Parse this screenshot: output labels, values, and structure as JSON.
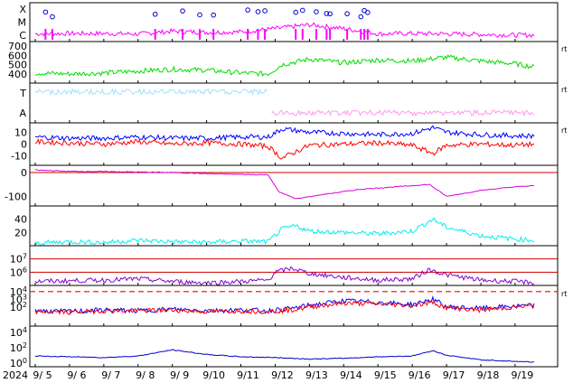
{
  "chart_data": {
    "type": "line",
    "title": "",
    "year_label": "2024",
    "days": [
      "9/ 5",
      "9/ 6",
      "9/ 7",
      "9/ 8",
      "9/ 9",
      "9/10",
      "9/11",
      "9/12",
      "9/13",
      "9/14",
      "9/15",
      "9/16",
      "9/17",
      "9/18",
      "9/19"
    ],
    "panels": [
      {
        "id": "xray",
        "ylim": [
          0,
          3
        ],
        "y_labels": [
          {
            "text": "X",
            "y": 2.5
          },
          {
            "text": "M",
            "y": 1.5
          },
          {
            "text": "C",
            "y": 0.5
          }
        ],
        "series": [
          {
            "color": "#ff00ff",
            "points": [
              [
                0,
                0.6
              ],
              [
                1,
                0.62
              ],
              [
                2,
                0.62
              ],
              [
                3,
                0.58
              ],
              [
                4,
                0.8
              ],
              [
                5,
                0.7
              ],
              [
                6,
                0.75
              ],
              [
                7,
                1.0
              ],
              [
                8,
                1.3
              ],
              [
                9,
                1.0
              ],
              [
                10,
                0.6
              ],
              [
                11,
                0.62
              ],
              [
                12,
                0.6
              ],
              [
                13,
                0.55
              ],
              [
                14,
                0.5
              ],
              [
                14.6,
                0.5
              ]
            ]
          }
        ],
        "flare_days": [
          0.3,
          0.5,
          3.5,
          4.3,
          4.8,
          5.2,
          6.2,
          6.5,
          6.7,
          7.6,
          7.8,
          8.2,
          8.5,
          8.6,
          9.1,
          9.5,
          9.6,
          9.7
        ]
      },
      {
        "id": "solar_wind_speed",
        "ylim": [
          300,
          750
        ],
        "ticks": [
          400,
          500,
          600,
          700
        ],
        "series": [
          {
            "color": "#00dd00",
            "points": [
              [
                0,
                410
              ],
              [
                1,
                400
              ],
              [
                2,
                410
              ],
              [
                3,
                430
              ],
              [
                4,
                450
              ],
              [
                5,
                440
              ],
              [
                6,
                410
              ],
              [
                6.8,
                400
              ],
              [
                7.2,
                500
              ],
              [
                8,
                560
              ],
              [
                9,
                520
              ],
              [
                10,
                550
              ],
              [
                11,
                540
              ],
              [
                12,
                580
              ],
              [
                13,
                540
              ],
              [
                14,
                510
              ],
              [
                14.6,
                470
              ]
            ]
          }
        ]
      },
      {
        "id": "imf_sector",
        "y_labels": [
          {
            "text": "T",
            "y": 0.75
          },
          {
            "text": "A",
            "y": 0.25
          }
        ],
        "series": [
          {
            "color": "#a0e0ff",
            "name": "",
            "points": [
              [
                0,
                0.78
              ],
              [
                6.8,
                0.78
              ]
            ]
          },
          {
            "color": "#ff99ee",
            "name": "",
            "points": [
              [
                6.9,
                0.25
              ],
              [
                14.6,
                0.25
              ]
            ]
          }
        ]
      },
      {
        "id": "imf_bz",
        "ylim": [
          -18,
          18
        ],
        "ticks": [
          10,
          0,
          -10
        ],
        "series": [
          {
            "color": "#0000ff",
            "points": [
              [
                0,
                6
              ],
              [
                1,
                5
              ],
              [
                2,
                5
              ],
              [
                3,
                6
              ],
              [
                4,
                5
              ],
              [
                5,
                5
              ],
              [
                6,
                6
              ],
              [
                6.8,
                6
              ],
              [
                7.2,
                13
              ],
              [
                8,
                10
              ],
              [
                9,
                9
              ],
              [
                10,
                8
              ],
              [
                11,
                9
              ],
              [
                11.6,
                14
              ],
              [
                12,
                10
              ],
              [
                13,
                8
              ],
              [
                14,
                7
              ],
              [
                14.6,
                7
              ]
            ]
          },
          {
            "color": "#ff0000",
            "points": [
              [
                0,
                2
              ],
              [
                1,
                1
              ],
              [
                2,
                0
              ],
              [
                3,
                2
              ],
              [
                4,
                0
              ],
              [
                5,
                1
              ],
              [
                6,
                0
              ],
              [
                6.8,
                -2
              ],
              [
                7.2,
                -12
              ],
              [
                8,
                -1
              ],
              [
                9,
                0
              ],
              [
                10,
                1
              ],
              [
                11,
                -1
              ],
              [
                11.6,
                -8
              ],
              [
                12,
                -1
              ],
              [
                13,
                0
              ],
              [
                14,
                -1
              ],
              [
                14.6,
                0
              ]
            ]
          }
        ]
      },
      {
        "id": "dst",
        "ylim": [
          -140,
          30
        ],
        "ticks": [
          0,
          -100
        ],
        "series": [
          {
            "color": "#dd00dd",
            "points": [
              [
                0,
                10
              ],
              [
                1,
                5
              ],
              [
                2,
                4
              ],
              [
                3,
                2
              ],
              [
                4,
                0
              ],
              [
                5,
                -5
              ],
              [
                6,
                -8
              ],
              [
                6.8,
                -10
              ],
              [
                7.1,
                -80
              ],
              [
                7.6,
                -110
              ],
              [
                8.5,
                -90
              ],
              [
                9.5,
                -70
              ],
              [
                10.5,
                -60
              ],
              [
                11.5,
                -50
              ],
              [
                12,
                -100
              ],
              [
                13,
                -75
              ],
              [
                14,
                -60
              ],
              [
                14.6,
                -55
              ]
            ]
          }
        ],
        "ref_lines": [
          0
        ]
      },
      {
        "id": "kp_like",
        "ylim": [
          0,
          60
        ],
        "ticks": [
          40,
          20
        ],
        "series": [
          {
            "color": "#00eeee",
            "points": [
              [
                0,
                4
              ],
              [
                1,
                6
              ],
              [
                2,
                5
              ],
              [
                3,
                8
              ],
              [
                4,
                6
              ],
              [
                5,
                5
              ],
              [
                6,
                7
              ],
              [
                6.8,
                6
              ],
              [
                7.2,
                25
              ],
              [
                7.6,
                30
              ],
              [
                8,
                22
              ],
              [
                9,
                20
              ],
              [
                10,
                18
              ],
              [
                11,
                22
              ],
              [
                11.6,
                40
              ],
              [
                12,
                28
              ],
              [
                13,
                15
              ],
              [
                14,
                10
              ],
              [
                14.6,
                8
              ]
            ]
          }
        ]
      },
      {
        "id": "electron_flux",
        "ylim": [
          5,
          8
        ],
        "ticks_log": [
          7,
          6
        ],
        "series": [
          {
            "color": "#8800cc",
            "points": [
              [
                0,
                5.3
              ],
              [
                2,
                5.4
              ],
              [
                3,
                5.5
              ],
              [
                4,
                5.3
              ],
              [
                5,
                5.2
              ],
              [
                6,
                5.3
              ],
              [
                6.8,
                5.4
              ],
              [
                7,
                6.0
              ],
              [
                7.5,
                6.3
              ],
              [
                8,
                5.9
              ],
              [
                9,
                5.6
              ],
              [
                10,
                5.4
              ],
              [
                11,
                5.5
              ],
              [
                11.5,
                6.2
              ],
              [
                12,
                5.8
              ],
              [
                13,
                5.4
              ],
              [
                14,
                5.3
              ],
              [
                14.6,
                5.2
              ]
            ]
          }
        ],
        "ref_lines": [
          7,
          6
        ]
      },
      {
        "id": "proton_flux",
        "ylim": [
          -0.5,
          4.8
        ],
        "ticks_log": [
          4,
          3,
          2
        ],
        "series": [
          {
            "color": "#0000ff",
            "points": [
              [
                0,
                1.5
              ],
              [
                1,
                1.4
              ],
              [
                2,
                1.6
              ],
              [
                3,
                1.5
              ],
              [
                4,
                1.7
              ],
              [
                5,
                1.5
              ],
              [
                6,
                1.6
              ],
              [
                6.8,
                1.5
              ],
              [
                7.5,
                1.8
              ],
              [
                8,
                2.2
              ],
              [
                9,
                2.8
              ],
              [
                10,
                2.6
              ],
              [
                11,
                2.3
              ],
              [
                11.6,
                3.0
              ],
              [
                12,
                2.0
              ],
              [
                13,
                1.8
              ],
              [
                14,
                2.1
              ],
              [
                14.6,
                2.2
              ]
            ]
          },
          {
            "color": "#ff0000",
            "points": [
              [
                0,
                1.4
              ],
              [
                1,
                1.3
              ],
              [
                2,
                1.5
              ],
              [
                3,
                1.5
              ],
              [
                4,
                1.6
              ],
              [
                5,
                1.4
              ],
              [
                6,
                1.5
              ],
              [
                6.8,
                1.4
              ],
              [
                7.5,
                1.6
              ],
              [
                8,
                2.0
              ],
              [
                9,
                2.5
              ],
              [
                10,
                2.4
              ],
              [
                11,
                2.2
              ],
              [
                11.6,
                2.6
              ],
              [
                12,
                1.9
              ],
              [
                13,
                1.6
              ],
              [
                14,
                2.0
              ],
              [
                14.6,
                2.1
              ]
            ]
          }
        ],
        "dashed_ref": 4
      },
      {
        "id": "neutron",
        "ylim": [
          -0.5,
          4.8
        ],
        "ticks_log": [
          4,
          2,
          0
        ],
        "series": [
          {
            "color": "#0000cc",
            "points": [
              [
                0,
                0.9
              ],
              [
                1,
                0.8
              ],
              [
                2,
                0.7
              ],
              [
                3,
                0.9
              ],
              [
                4,
                1.7
              ],
              [
                5,
                1.1
              ],
              [
                6,
                0.8
              ],
              [
                7,
                0.7
              ],
              [
                8,
                0.5
              ],
              [
                9,
                0.6
              ],
              [
                10,
                0.8
              ],
              [
                11,
                0.9
              ],
              [
                11.6,
                1.6
              ],
              [
                12,
                1.0
              ],
              [
                13,
                0.4
              ],
              [
                14,
                0.2
              ],
              [
                14.6,
                0.1
              ]
            ]
          }
        ]
      }
    ]
  },
  "right_marks": [
    "rt",
    "rt",
    "rt",
    "rt"
  ]
}
